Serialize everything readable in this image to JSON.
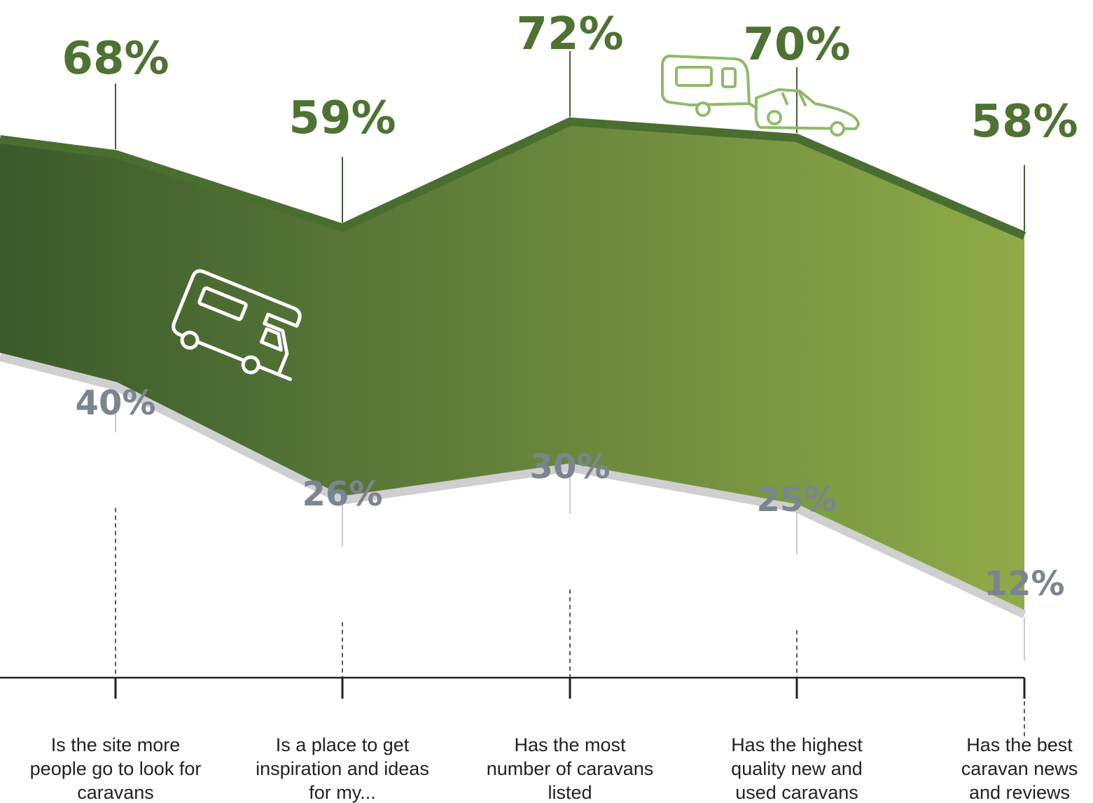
{
  "chart_data": {
    "type": "area",
    "categories": [
      [
        "Is the site more",
        "people go to look for",
        "caravans"
      ],
      [
        "Is a place to get",
        "inspiration and ideas",
        "for my..."
      ],
      [
        "Has the most",
        "number of caravans",
        "listed"
      ],
      [
        "Has the highest",
        "quality new and",
        "used caravans"
      ],
      [
        "Has the best",
        "caravan news",
        "and reviews"
      ]
    ],
    "series": [
      {
        "values": [
          68,
          59,
          72,
          70,
          58
        ],
        "labels": [
          "68%",
          "59%",
          "72%",
          "70%",
          "58%"
        ]
      },
      {
        "values": [
          40,
          26,
          30,
          25,
          12
        ],
        "labels": [
          "40%",
          "26%",
          "30%",
          "25%",
          "12%"
        ]
      }
    ],
    "colors": {
      "gradient_start": "#3a5a2c",
      "gradient_end": "#8fab48",
      "top_edge": "#4a6e30",
      "bottom_edge": "#cfcfcf",
      "top_label": "#4e7232",
      "bottom_label": "#7a8590",
      "icon_caravan_car": "#8fba6a",
      "icon_motorhome": "#ffffff"
    },
    "icons": [
      "caravan-car-icon",
      "motorhome-icon"
    ]
  }
}
